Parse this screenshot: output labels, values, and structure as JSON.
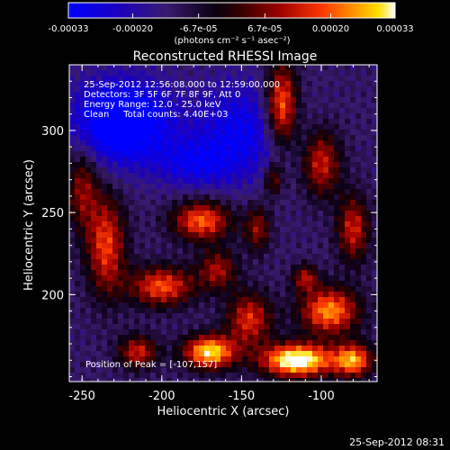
{
  "chart_data": {
    "type": "heatmap",
    "title": "Reconstructed RHESSI Image",
    "xlabel": "Heliocentric X (arcsec)",
    "ylabel": "Heliocentric Y (arcsec)",
    "xlim": [
      -258,
      -65
    ],
    "ylim": [
      147,
      340
    ],
    "x_ticks": [
      "-250",
      "-200",
      "-150",
      "-100"
    ],
    "y_ticks": [
      "200",
      "250",
      "300"
    ],
    "x_tick_values": [
      -250,
      -200,
      -150,
      -100
    ],
    "y_tick_values": [
      200,
      250,
      300
    ],
    "colorbar": {
      "range": [
        -0.00033,
        0.00033
      ],
      "tick_labels": [
        "-0.00033",
        "-0.00020",
        "-6.7e-05",
        "6.7e-05",
        "0.00020",
        "0.00033"
      ],
      "tick_values": [
        -0.00033,
        -0.0002,
        -6.7e-05,
        6.7e-05,
        0.0002,
        0.00033
      ],
      "unit_label": "(photons cm⁻² s⁻¹ asec⁻²)",
      "colors": [
        "#0000ff",
        "#2000a0",
        "#3a1a6e",
        "#000000",
        "#5a0000",
        "#b00000",
        "#ff3000",
        "#ff9000",
        "#ffe000",
        "#ffffff"
      ]
    },
    "annotations": [
      "25-Sep-2012 12:56:08.000 to 12:59:00.000",
      "Detectors: 3F 5F 6F 7F 8F 9F, Att 0",
      "Energy Range: 12.0 - 25.0 keV",
      "Clean     Total counts: 4.40E+03",
      "Position of Peak = [-107,157]"
    ],
    "peak_position": [
      -107,
      157
    ],
    "grid": false
  },
  "footer": {
    "timestamp": "25-Sep-2012 08:31"
  }
}
